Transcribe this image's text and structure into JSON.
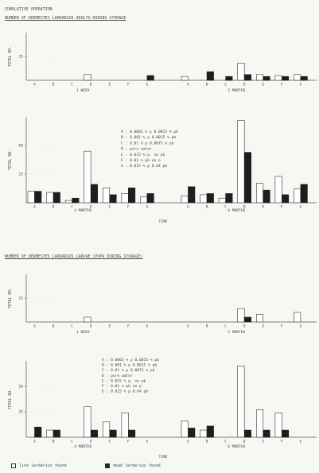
{
  "header": {
    "line1": "CUMULATIVE OPERATION",
    "title1": "NUMBER OF DERMESTES LARDARIUS ADULTS DURING STORAGE",
    "title2": "NUMBER OF DERMESTES LARDARIUS LARVAE (PUPA DURING STORAGE)"
  },
  "footer": {
    "legend_open": "live lardarius found",
    "legend_filled": "dead lardarius found",
    "colors": {
      "open": "#ffffff",
      "filled": "#1e1e1e",
      "axis": "#555555"
    }
  },
  "chart_data": [
    {
      "name": "adults-week-2months",
      "type": "bar",
      "ylabel": "TOTAL NO.",
      "yticks": [
        "25"
      ],
      "ylim": [
        0,
        50
      ],
      "groups": [
        {
          "label": "1 WEEK",
          "categories": [
            "A",
            "B",
            "C",
            "D",
            "E",
            "F",
            "G"
          ],
          "open": [
            0,
            0,
            0,
            6,
            0,
            0,
            0
          ],
          "filled": [
            0,
            0,
            0,
            0,
            0,
            0,
            5
          ]
        },
        {
          "label": "2 MONTHS",
          "categories": [
            "A",
            "B",
            "C",
            "D",
            "E",
            "F",
            "G"
          ],
          "open": [
            4,
            0,
            0,
            18,
            6,
            5,
            6
          ],
          "filled": [
            0,
            9,
            4,
            6,
            4,
            4,
            4
          ]
        }
      ]
    },
    {
      "name": "adults-4months-6months",
      "type": "bar",
      "ylabel": "TOTAL NO.",
      "yticks": [
        "25",
        "50"
      ],
      "xlabel": "TIME",
      "ylim": [
        0,
        75
      ],
      "legend": [
        "A : 0.0001 % p 0.0015 % pb",
        "B : 0.001 % p 0.0015 % pb",
        "C : 0.01 % p 0.0075 % pb",
        "D : pure water",
        "E : 0.015 % p. no pb",
        "F : 0.01 % pb no p",
        "G : 0.015 % p 0.64 pb"
      ],
      "groups": [
        {
          "label": "4 MONTHS",
          "categories": [
            "A",
            "B",
            "C",
            "D",
            "E",
            "F",
            "G"
          ],
          "open": [
            10,
            9,
            2,
            45,
            13,
            8,
            5
          ],
          "filled": [
            10,
            9,
            4,
            16,
            7,
            13,
            8
          ]
        },
        {
          "label": "6 MONTHS",
          "categories": [
            "A",
            "B",
            "C",
            "D",
            "E",
            "F",
            "G"
          ],
          "open": [
            6,
            7,
            4,
            72,
            17,
            23,
            12
          ],
          "filled": [
            14,
            8,
            8,
            44,
            11,
            7,
            16
          ]
        }
      ]
    },
    {
      "name": "larvae-week-2months",
      "type": "bar",
      "ylabel": "TOTAL NO.",
      "yticks": [
        "25"
      ],
      "ylim": [
        0,
        50
      ],
      "groups": [
        {
          "label": "1 WEEK",
          "categories": [
            "A",
            "B",
            "C",
            "D",
            "E",
            "F",
            "G"
          ],
          "open": [
            0,
            0,
            0,
            5,
            0,
            0,
            0
          ],
          "filled": [
            0,
            0,
            0,
            0,
            0,
            0,
            0
          ]
        },
        {
          "label": "2 MONTHS",
          "categories": [
            "A",
            "B",
            "C",
            "D",
            "E",
            "F",
            "G"
          ],
          "open": [
            0,
            0,
            0,
            14,
            8,
            0,
            10
          ],
          "filled": [
            0,
            0,
            0,
            5,
            0,
            0,
            0
          ]
        }
      ]
    },
    {
      "name": "larvae-4months-6months",
      "type": "bar",
      "ylabel": "TOTAL NO.",
      "yticks": [
        "25",
        "50"
      ],
      "xlabel": "TIME",
      "ylim": [
        0,
        75
      ],
      "legend": [
        "A : 0.0001 % p 0.0015 % pb",
        "B : 0.001 % p 0.0015 % pb",
        "C : 0.01 % p 0.0075 % pb",
        "D : pure water",
        "E : 0.015 % p. no pb",
        "F : 0.01 % pb no p",
        "G : 0.015 % p 0.64 pb"
      ],
      "groups": [
        {
          "label": "4 MONTHS",
          "categories": [
            "A",
            "B",
            "C",
            "D",
            "E",
            "F",
            "G"
          ],
          "open": [
            0,
            7,
            0,
            30,
            15,
            24,
            0
          ],
          "filled": [
            10,
            7,
            0,
            7,
            7,
            7,
            0
          ]
        },
        {
          "label": "6 MONTHS",
          "categories": [
            "A",
            "B",
            "C",
            "D",
            "E",
            "F",
            "G"
          ],
          "open": [
            16,
            7,
            0,
            70,
            27,
            24,
            0
          ],
          "filled": [
            9,
            11,
            0,
            7,
            7,
            7,
            0
          ]
        }
      ]
    }
  ]
}
